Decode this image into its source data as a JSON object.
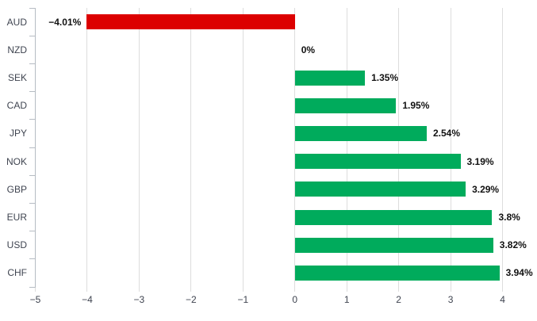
{
  "chart_data": {
    "type": "bar",
    "orientation": "horizontal",
    "title": "",
    "xlabel": "",
    "ylabel": "",
    "categories": [
      "AUD",
      "NZD",
      "SEK",
      "CAD",
      "JPY",
      "NOK",
      "GBP",
      "EUR",
      "USD",
      "CHF"
    ],
    "values": [
      -4.01,
      0,
      1.35,
      1.95,
      2.54,
      3.19,
      3.29,
      3.8,
      3.82,
      3.94
    ],
    "value_labels": [
      "−4.01%",
      "0%",
      "1.35%",
      "1.95%",
      "2.54%",
      "3.19%",
      "3.29%",
      "3.8%",
      "3.82%",
      "3.94%"
    ],
    "x_ticks": [
      -5,
      -4,
      -3,
      -2,
      -1,
      0,
      1,
      2,
      3,
      4
    ],
    "x_tick_labels": [
      "−5",
      "−4",
      "−3",
      "−2",
      "−1",
      "0",
      "1",
      "2",
      "3",
      "4"
    ],
    "xlim": [
      -5,
      4.4
    ],
    "grid": true,
    "legend": "none",
    "colors": {
      "positive_bar": "#00ab5c",
      "negative_bar": "#dc0000",
      "gridline": "#dddddd",
      "axis_line": "#b6bcc3",
      "tick_text": "#3f4450",
      "value_text": "#111111",
      "background": "#ffffff"
    }
  }
}
